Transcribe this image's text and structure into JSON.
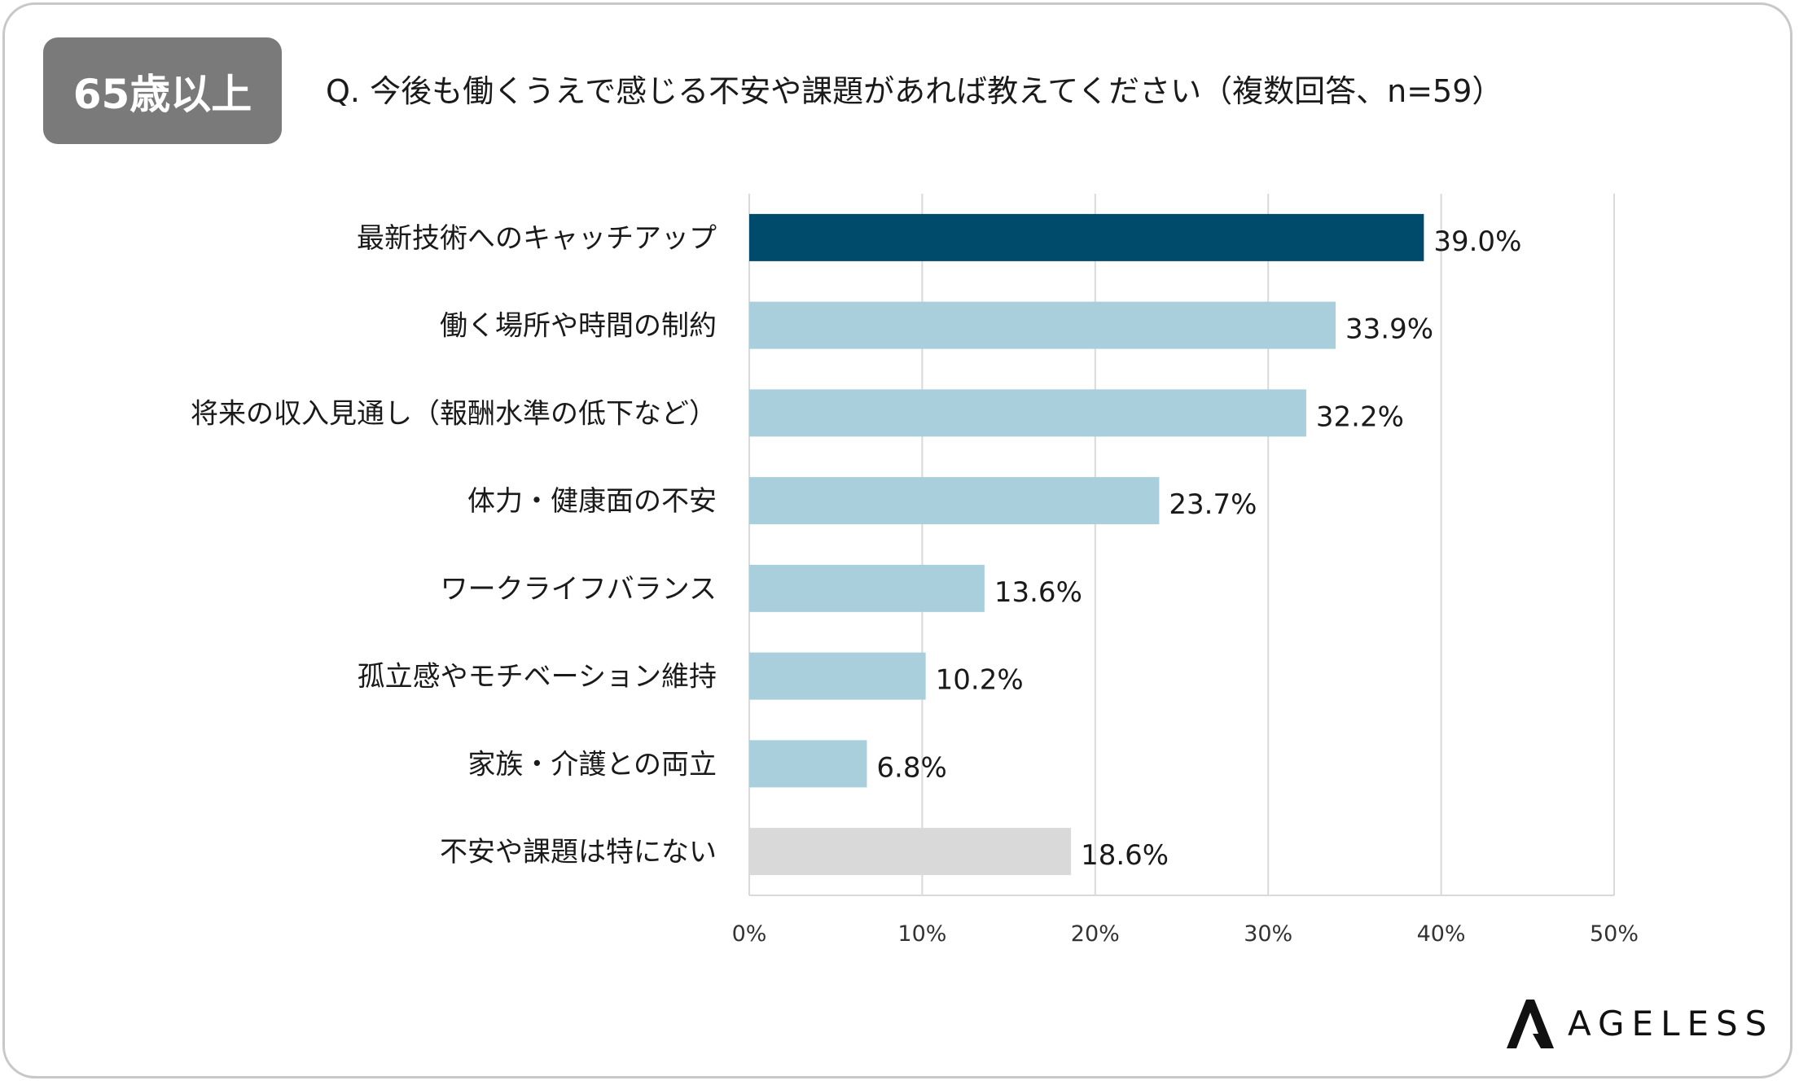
{
  "header": {
    "badge": "65歳以上",
    "question": "Q. 今後も働くうえで感じる不安や課題があれば教えてください（複数回答、n=59）"
  },
  "brand": {
    "logo_text": "AGELESS"
  },
  "colors": {
    "highlight": "#004a6b",
    "default": "#a9cfdd",
    "none": "#d9d9d9",
    "grid": "#d9d9d9",
    "badge": "#7a7a7a"
  },
  "chart_data": {
    "type": "bar",
    "orientation": "horizontal",
    "categories": [
      "最新技術へのキャッチアップ",
      "働く場所や時間の制約",
      "将来の収入見通し（報酬水準の低下など）",
      "体力・健康面の不安",
      "ワークライフバランス",
      "孤立感やモチベーション維持",
      "家族・介護との両立",
      "不安や課題は特にない"
    ],
    "values": [
      39.0,
      33.9,
      32.2,
      23.7,
      13.6,
      10.2,
      6.8,
      18.6
    ],
    "value_labels": [
      "39.0%",
      "33.9%",
      "32.2%",
      "23.7%",
      "13.6%",
      "10.2%",
      "6.8%",
      "18.6%"
    ],
    "bar_colors": [
      "#004a6b",
      "#a9cfdd",
      "#a9cfdd",
      "#a9cfdd",
      "#a9cfdd",
      "#a9cfdd",
      "#a9cfdd",
      "#d9d9d9"
    ],
    "xlim": [
      0,
      50
    ],
    "x_ticks": [
      0,
      10,
      20,
      30,
      40,
      50
    ],
    "x_tick_labels": [
      "0%",
      "10%",
      "20%",
      "30%",
      "40%",
      "50%"
    ],
    "grid": true,
    "legend": false
  }
}
